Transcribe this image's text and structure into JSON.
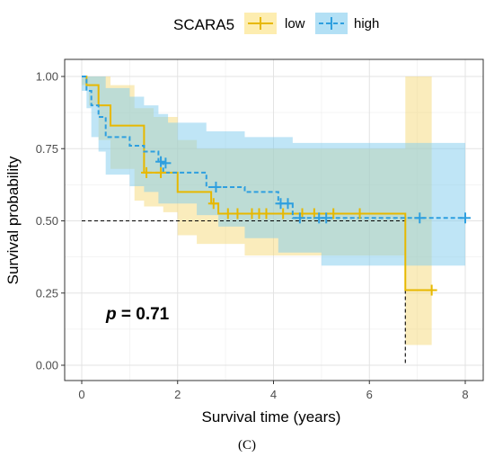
{
  "chart_data": {
    "type": "line",
    "subtype": "kaplan-meier",
    "xlabel": "Survival time (years)",
    "ylabel": "Survival probability",
    "xlim": [
      0,
      8
    ],
    "ylim": [
      0,
      1
    ],
    "xticks": [
      "0",
      "2",
      "4",
      "6",
      "8"
    ],
    "yticks": [
      "0.00",
      "0.25",
      "0.50",
      "0.75",
      "1.00"
    ],
    "grid": true,
    "legend": {
      "title": "SCARA5",
      "position": "top"
    },
    "annotation": {
      "italic": "p",
      "rest": " = 0.71",
      "position": "bottom-left"
    },
    "median_line": {
      "y": 0.5,
      "x_end": 6.75
    },
    "series": [
      {
        "name": "low",
        "color": "#E7B800",
        "line_style": "solid",
        "steps": [
          [
            0,
            1.0
          ],
          [
            0.1,
            0.97
          ],
          [
            0.35,
            0.9
          ],
          [
            0.6,
            0.83
          ],
          [
            1.3,
            0.667
          ],
          [
            2.0,
            0.6
          ],
          [
            2.7,
            0.56
          ],
          [
            2.85,
            0.525
          ],
          [
            6.75,
            0.26
          ],
          [
            7.3,
            0.26
          ]
        ],
        "censored": [
          [
            1.35,
            0.667
          ],
          [
            1.65,
            0.667
          ],
          [
            2.75,
            0.56
          ],
          [
            3.05,
            0.525
          ],
          [
            3.25,
            0.525
          ],
          [
            3.55,
            0.525
          ],
          [
            3.7,
            0.525
          ],
          [
            3.85,
            0.525
          ],
          [
            4.2,
            0.525
          ],
          [
            4.6,
            0.525
          ],
          [
            4.85,
            0.525
          ],
          [
            5.25,
            0.525
          ],
          [
            5.8,
            0.525
          ],
          [
            7.3,
            0.26
          ]
        ],
        "ci_upper": [
          [
            0,
            1.0
          ],
          [
            0.15,
            1.0
          ],
          [
            0.6,
            0.97
          ],
          [
            1.1,
            0.89
          ],
          [
            1.5,
            0.86
          ],
          [
            2.0,
            0.78
          ],
          [
            2.4,
            0.75
          ],
          [
            6.75,
            1.0
          ],
          [
            7.3,
            1.0
          ]
        ],
        "ci_lower": [
          [
            0,
            0.97
          ],
          [
            0.15,
            0.9
          ],
          [
            0.35,
            0.78
          ],
          [
            0.6,
            0.68
          ],
          [
            1.1,
            0.57
          ],
          [
            1.3,
            0.55
          ],
          [
            1.7,
            0.53
          ],
          [
            2.0,
            0.45
          ],
          [
            2.4,
            0.42
          ],
          [
            3.4,
            0.38
          ],
          [
            6.75,
            0.07
          ],
          [
            7.3,
            0.07
          ]
        ]
      },
      {
        "name": "high",
        "color": "#2E9FDF",
        "line_style": "dashed",
        "steps": [
          [
            0,
            1.0
          ],
          [
            0.1,
            0.95
          ],
          [
            0.2,
            0.9
          ],
          [
            0.35,
            0.86
          ],
          [
            0.5,
            0.79
          ],
          [
            1.0,
            0.76
          ],
          [
            1.3,
            0.74
          ],
          [
            1.6,
            0.7
          ],
          [
            1.7,
            0.667
          ],
          [
            2.6,
            0.617
          ],
          [
            3.4,
            0.6
          ],
          [
            4.1,
            0.56
          ],
          [
            4.4,
            0.51
          ],
          [
            8.0,
            0.51
          ]
        ],
        "censored": [
          [
            1.65,
            0.705
          ],
          [
            1.75,
            0.7
          ],
          [
            2.8,
            0.617
          ],
          [
            4.15,
            0.56
          ],
          [
            4.3,
            0.56
          ],
          [
            4.55,
            0.51
          ],
          [
            4.95,
            0.51
          ],
          [
            5.1,
            0.51
          ],
          [
            7.05,
            0.51
          ],
          [
            8.0,
            0.51
          ]
        ],
        "ci_upper": [
          [
            0,
            1.0
          ],
          [
            0.5,
            0.96
          ],
          [
            1.0,
            0.93
          ],
          [
            1.3,
            0.9
          ],
          [
            1.6,
            0.87
          ],
          [
            1.8,
            0.84
          ],
          [
            2.6,
            0.81
          ],
          [
            3.4,
            0.79
          ],
          [
            4.4,
            0.77
          ],
          [
            8.0,
            0.77
          ]
        ],
        "ci_lower": [
          [
            0,
            0.95
          ],
          [
            0.1,
            0.89
          ],
          [
            0.2,
            0.79
          ],
          [
            0.35,
            0.74
          ],
          [
            0.5,
            0.66
          ],
          [
            1.0,
            0.62
          ],
          [
            1.3,
            0.6
          ],
          [
            1.6,
            0.56
          ],
          [
            2.4,
            0.52
          ],
          [
            2.85,
            0.48
          ],
          [
            3.4,
            0.44
          ],
          [
            4.1,
            0.39
          ],
          [
            5.0,
            0.345
          ],
          [
            8.0,
            0.345
          ]
        ]
      }
    ]
  },
  "caption": "(C)"
}
